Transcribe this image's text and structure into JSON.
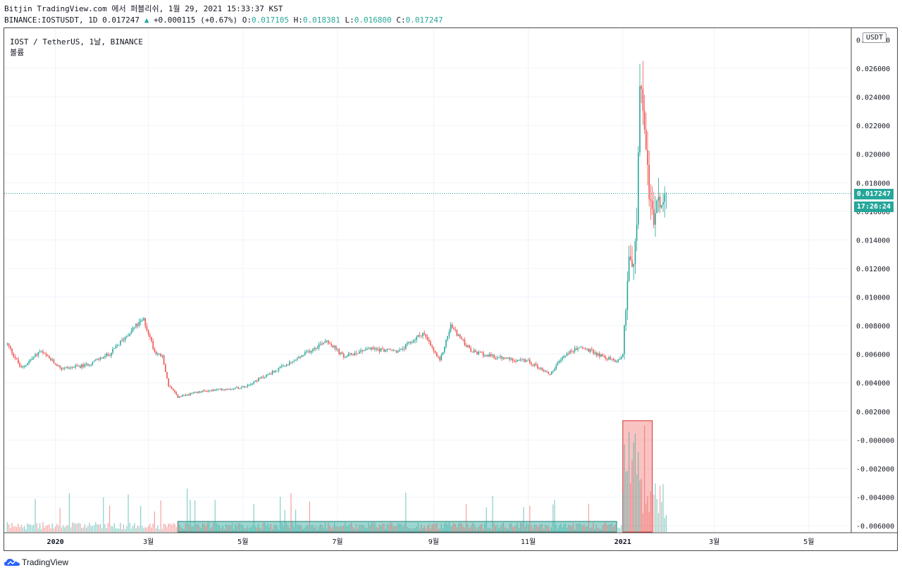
{
  "header": {
    "line1": "Bitjin TradingView.com 에서 퍼블리쉬, 1월 29, 2021 15:33:37 KST",
    "symbol_info": "BINANCE:IOSTUSDT, 1D 0.017247",
    "change": "+0.000115 (+0.67%)",
    "o_label": "O:",
    "o_value": "0.017105",
    "h_label": "H:",
    "h_value": "0.018381",
    "l_label": "L:",
    "l_value": "0.016800",
    "c_label": "C:",
    "c_value": "0.017247"
  },
  "legend": {
    "title": "IOST / TetherUS, 1날, BINANCE",
    "volume": "볼륨"
  },
  "currency_badge": "USDT",
  "last_price_tag": "0.017247",
  "countdown_tag": "17:26:24",
  "brand": "TradingView",
  "colors": {
    "up": "#26a69a",
    "down": "#ef5350",
    "grid": "#f0f3fa"
  },
  "chart_data": {
    "type": "candlestick",
    "y_ticks": [
      "0.026000",
      "0.024000",
      "0.022000",
      "0.020000",
      "0.018000",
      "0.016000",
      "0.014000",
      "0.012000",
      "0.010000",
      "0.008000",
      "0.006000",
      "0.004000",
      "0.002000",
      "-0.000000",
      "-0.002000",
      "-0.004000",
      "-0.006000"
    ],
    "y_range": [
      -0.0063,
      0.0282
    ],
    "x_ticks": [
      "2020",
      "3월",
      "5월",
      "7월",
      "9월",
      "11월",
      "2021",
      "3월",
      "5월"
    ],
    "last_price": 0.017247,
    "close_path": [
      [
        "2019-12-01",
        0.0067
      ],
      [
        "2019-12-10",
        0.005
      ],
      [
        "2019-12-22",
        0.0062
      ],
      [
        "2020-01-05",
        0.005
      ],
      [
        "2020-01-20",
        0.0052
      ],
      [
        "2020-02-05",
        0.006
      ],
      [
        "2020-02-20",
        0.0078
      ],
      [
        "2020-02-27",
        0.0084
      ],
      [
        "2020-03-05",
        0.0062
      ],
      [
        "2020-03-10",
        0.0058
      ],
      [
        "2020-03-14",
        0.0038
      ],
      [
        "2020-03-20",
        0.003
      ],
      [
        "2020-04-05",
        0.0034
      ],
      [
        "2020-05-01",
        0.0037
      ],
      [
        "2020-06-01",
        0.0054
      ],
      [
        "2020-06-24",
        0.007
      ],
      [
        "2020-07-05",
        0.0058
      ],
      [
        "2020-07-20",
        0.0064
      ],
      [
        "2020-08-10",
        0.0062
      ],
      [
        "2020-08-25",
        0.0075
      ],
      [
        "2020-09-05",
        0.0055
      ],
      [
        "2020-09-12",
        0.008
      ],
      [
        "2020-09-25",
        0.0062
      ],
      [
        "2020-10-10",
        0.0058
      ],
      [
        "2020-11-01",
        0.0055
      ],
      [
        "2020-11-15",
        0.0046
      ],
      [
        "2020-11-25",
        0.006
      ],
      [
        "2020-12-05",
        0.0065
      ],
      [
        "2020-12-20",
        0.0058
      ],
      [
        "2020-12-28",
        0.0055
      ],
      [
        "2021-01-01",
        0.006
      ],
      [
        "2021-01-03",
        0.0095
      ],
      [
        "2021-01-05",
        0.013
      ],
      [
        "2021-01-08",
        0.012
      ],
      [
        "2021-01-10",
        0.015
      ],
      [
        "2021-01-12",
        0.025
      ],
      [
        "2021-01-15",
        0.022
      ],
      [
        "2021-01-18",
        0.0175
      ],
      [
        "2021-01-21",
        0.015
      ],
      [
        "2021-01-24",
        0.017
      ],
      [
        "2021-01-27",
        0.016
      ],
      [
        "2021-01-29",
        0.017247
      ]
    ],
    "volume_rectangles": [
      {
        "from": "2020-03-20",
        "to": "2020-12-28",
        "type": "teal"
      },
      {
        "from": "2021-01-01",
        "to": "2021-01-20",
        "type": "red"
      }
    ]
  }
}
